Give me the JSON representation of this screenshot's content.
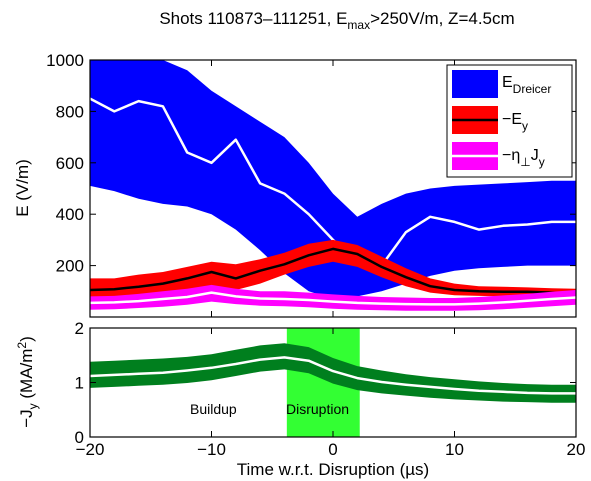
{
  "title": {
    "prefix": "Shots 110873–111251, E",
    "sub": "max",
    "suffix": ">250V/m, Z=4.5cm"
  },
  "xlabel": "Time w.r.t. Disruption (µs)",
  "colors": {
    "dreicer": "#0000ff",
    "ey_band": "#ff0000",
    "ey_line": "#000000",
    "eta_band": "#ff00ff",
    "eta_line": "#ffffff",
    "jy_band": "#007f1e",
    "jy_line": "#ffffff",
    "disruption_span": "#33ff33",
    "white_trace": "#ffffff"
  },
  "chart_data": [
    {
      "type": "area",
      "ylabel": "E (V/m)",
      "xlim": [
        -20,
        20
      ],
      "ylim": [
        0,
        1000
      ],
      "yticks": [
        "200",
        "400",
        "600",
        "800",
        "1000"
      ],
      "grid": false,
      "legend_placement": "top-right",
      "legend": [
        {
          "main": "E",
          "sub": "Dreicer",
          "sup": ""
        },
        {
          "main": "−E",
          "sub": "y",
          "sup": ""
        },
        {
          "main": "−η",
          "sub": "⊥",
          "after": "J",
          "sub2": "y"
        }
      ],
      "series": [
        {
          "name": "E_Dreicer",
          "style": "band",
          "x": [
            -20,
            -18,
            -16,
            -14,
            -12,
            -10,
            -8,
            -6,
            -4,
            -2,
            0,
            2,
            4,
            6,
            8,
            10,
            12,
            14,
            16,
            18,
            20
          ],
          "upper": [
            1000,
            1000,
            1000,
            1000,
            960,
            880,
            820,
            760,
            700,
            600,
            480,
            390,
            440,
            480,
            500,
            510,
            515,
            520,
            525,
            530,
            530
          ],
          "lower": [
            510,
            490,
            460,
            440,
            430,
            400,
            340,
            260,
            170,
            100,
            70,
            80,
            100,
            130,
            160,
            180,
            190,
            195,
            200,
            200,
            200
          ],
          "center": [
            850,
            800,
            840,
            820,
            640,
            600,
            690,
            520,
            480,
            400,
            300,
            220,
            200,
            330,
            390,
            370,
            340,
            355,
            360,
            370,
            370
          ]
        },
        {
          "name": "−E_y",
          "style": "band_with_line",
          "x": [
            -20,
            -18,
            -16,
            -14,
            -12,
            -10,
            -8,
            -6,
            -4,
            -2,
            0,
            2,
            4,
            6,
            8,
            10,
            12,
            14,
            16,
            18,
            20
          ],
          "upper": [
            150,
            150,
            165,
            175,
            195,
            215,
            205,
            225,
            250,
            285,
            300,
            280,
            235,
            190,
            150,
            130,
            120,
            118,
            115,
            112,
            110
          ],
          "lower": [
            65,
            65,
            75,
            80,
            100,
            120,
            105,
            130,
            165,
            195,
            215,
            195,
            155,
            120,
            95,
            85,
            82,
            80,
            80,
            78,
            78
          ],
          "center": [
            105,
            108,
            118,
            130,
            150,
            175,
            150,
            180,
            205,
            240,
            265,
            245,
            195,
            155,
            120,
            105,
            100,
            98,
            98,
            95,
            93
          ]
        },
        {
          "name": "−η_⊥J_y",
          "style": "band_with_line",
          "x": [
            -20,
            -18,
            -16,
            -14,
            -12,
            -10,
            -8,
            -6,
            -4,
            -2,
            0,
            2,
            4,
            6,
            8,
            10,
            12,
            14,
            16,
            18,
            20
          ],
          "upper": [
            80,
            82,
            90,
            100,
            110,
            125,
            110,
            100,
            100,
            95,
            88,
            82,
            78,
            76,
            74,
            74,
            78,
            84,
            90,
            98,
            105
          ],
          "lower": [
            28,
            30,
            35,
            40,
            48,
            60,
            50,
            44,
            42,
            38,
            32,
            28,
            26,
            24,
            24,
            24,
            26,
            30,
            36,
            42,
            48
          ],
          "center": [
            55,
            57,
            62,
            70,
            78,
            95,
            80,
            72,
            70,
            66,
            60,
            55,
            52,
            50,
            49,
            49,
            52,
            57,
            63,
            70,
            76
          ]
        }
      ]
    },
    {
      "type": "area",
      "ylabel": "−J_y (MA/m²)",
      "xlim": [
        -20,
        20
      ],
      "ylim": [
        0,
        2
      ],
      "yticks": [
        "0",
        "1",
        "2"
      ],
      "xticks": [
        "−20",
        "−10",
        "0",
        "10",
        "20"
      ],
      "grid": false,
      "annotations": [
        "Buildup",
        "Disruption"
      ],
      "span": {
        "label": "Disruption",
        "x0": -3.8,
        "x1": 2.2
      },
      "series": [
        {
          "name": "−J_y",
          "style": "band_with_line",
          "x": [
            -20,
            -18,
            -16,
            -14,
            -12,
            -10,
            -8,
            -6,
            -4,
            -2,
            0,
            2,
            4,
            6,
            8,
            10,
            12,
            14,
            16,
            18,
            20
          ],
          "upper": [
            1.38,
            1.4,
            1.42,
            1.44,
            1.47,
            1.52,
            1.6,
            1.68,
            1.72,
            1.65,
            1.45,
            1.3,
            1.22,
            1.15,
            1.1,
            1.06,
            1.02,
            0.99,
            0.97,
            0.96,
            0.96
          ],
          "lower": [
            0.9,
            0.92,
            0.94,
            0.96,
            0.99,
            1.04,
            1.12,
            1.2,
            1.24,
            1.17,
            0.98,
            0.86,
            0.8,
            0.76,
            0.72,
            0.69,
            0.67,
            0.65,
            0.64,
            0.63,
            0.63
          ],
          "center": [
            1.12,
            1.14,
            1.16,
            1.18,
            1.22,
            1.27,
            1.34,
            1.42,
            1.46,
            1.4,
            1.21,
            1.08,
            1.01,
            0.96,
            0.92,
            0.88,
            0.85,
            0.83,
            0.81,
            0.8,
            0.8
          ]
        }
      ]
    }
  ]
}
